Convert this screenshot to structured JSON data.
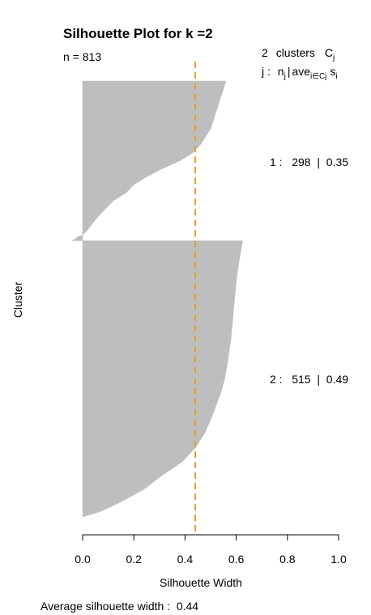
{
  "chart_data": {
    "type": "silhouette",
    "title": "Silhouette Plot for k =2",
    "n_label": "n = 813",
    "legend": {
      "header_count": "2",
      "header_word": "clusters",
      "header_symbol": "C",
      "header_symbol_sub": "j",
      "sub_j": "j :",
      "sub_n": "n",
      "sub_n_sub": "j",
      "sub_sep": "|",
      "sub_ave": "ave",
      "sub_ave_sub": "i∈Cj",
      "sub_s": "s",
      "sub_s_sub": "i"
    },
    "xlabel": "Silhouette Width",
    "ylabel": "Cluster",
    "xlim": [
      0,
      1
    ],
    "x_ticks": [
      "0.0",
      "0.2",
      "0.4",
      "0.6",
      "0.8",
      "1.0"
    ],
    "x_tick_values": [
      0,
      0.2,
      0.4,
      0.6,
      0.8,
      1.0
    ],
    "average_width": 0.44,
    "average_label": "Average silhouette width :  0.44",
    "bar_color": "#bebebe",
    "avg_line_color": "#f5a000",
    "clusters": [
      {
        "id": "1",
        "size": 298,
        "avg": 0.35,
        "label": "1 :   298  |  0.35",
        "profile": [
          [
            0,
            0.56
          ],
          [
            0.05,
            0.55
          ],
          [
            0.1,
            0.54
          ],
          [
            0.15,
            0.53
          ],
          [
            0.2,
            0.52
          ],
          [
            0.25,
            0.51
          ],
          [
            0.3,
            0.5
          ],
          [
            0.35,
            0.48
          ],
          [
            0.4,
            0.46
          ],
          [
            0.45,
            0.43
          ],
          [
            0.5,
            0.38
          ],
          [
            0.55,
            0.31
          ],
          [
            0.6,
            0.25
          ],
          [
            0.65,
            0.2
          ],
          [
            0.7,
            0.17
          ],
          [
            0.75,
            0.12
          ],
          [
            0.8,
            0.09
          ],
          [
            0.85,
            0.06
          ],
          [
            0.9,
            0.035
          ],
          [
            0.95,
            0.01
          ],
          [
            0.965,
            0.0
          ],
          [
            0.975,
            -0.02
          ],
          [
            0.99,
            -0.03
          ],
          [
            1,
            -0.04
          ]
        ]
      },
      {
        "id": "2",
        "size": 515,
        "avg": 0.49,
        "label": "2 :   515  |  0.49",
        "profile": [
          [
            0,
            0.625
          ],
          [
            0.03,
            0.62
          ],
          [
            0.08,
            0.61
          ],
          [
            0.15,
            0.6
          ],
          [
            0.25,
            0.59
          ],
          [
            0.35,
            0.58
          ],
          [
            0.45,
            0.565
          ],
          [
            0.5,
            0.555
          ],
          [
            0.55,
            0.54
          ],
          [
            0.6,
            0.52
          ],
          [
            0.65,
            0.5
          ],
          [
            0.7,
            0.475
          ],
          [
            0.75,
            0.44
          ],
          [
            0.8,
            0.39
          ],
          [
            0.85,
            0.31
          ],
          [
            0.9,
            0.24
          ],
          [
            0.95,
            0.14
          ],
          [
            0.98,
            0.07
          ],
          [
            1,
            0.0
          ]
        ]
      }
    ]
  }
}
